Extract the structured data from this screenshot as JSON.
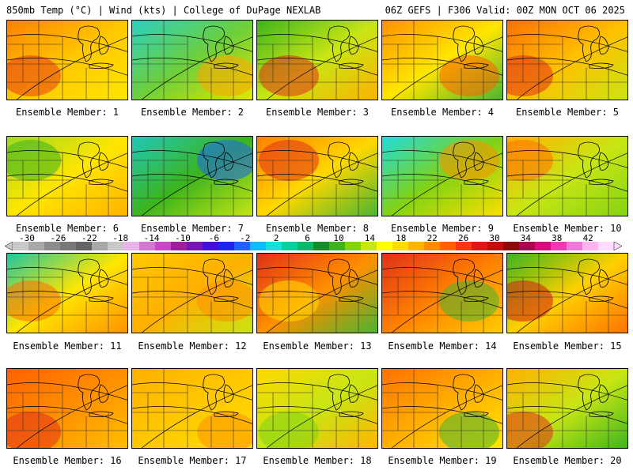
{
  "header": {
    "left": "850mb Temp (°C) | Wind (kts) | College of DuPage NEXLAB",
    "right": "06Z GEFS | F306 Valid: 00Z MON OCT 06 2025"
  },
  "colorbar": {
    "ticks": [
      "-30",
      "-26",
      "-22",
      "-18",
      "-14",
      "-10",
      "-6",
      "-2",
      "2",
      "6",
      "10",
      "14",
      "18",
      "22",
      "26",
      "30",
      "34",
      "38",
      "42"
    ],
    "colors": [
      "#c8c8c8",
      "#a8a8a8",
      "#8c8c8c",
      "#787878",
      "#646464",
      "#a8a8a8",
      "#c8c8c8",
      "#e6b4e6",
      "#d278d2",
      "#c846c8",
      "#a01ea0",
      "#7814b4",
      "#4614c8",
      "#1e28dc",
      "#1e64f0",
      "#1eb4ff",
      "#1edcdc",
      "#14c8a0",
      "#14b46e",
      "#148c28",
      "#3cb41e",
      "#82d214",
      "#c8e614",
      "#ffff00",
      "#ffdc00",
      "#ffb400",
      "#ff8c00",
      "#ff6400",
      "#f03c14",
      "#d21e14",
      "#b4140a",
      "#8c0a0a",
      "#a00a50",
      "#c8147d",
      "#e63cb4",
      "#f078dc",
      "#ffb4f0",
      "#ffdcff"
    ]
  },
  "panels": [
    {
      "label": "Ensemble Member: 1",
      "colors": [
        "#ff8000",
        "#ffc800",
        "#ffe600"
      ],
      "hot": "#e83c14"
    },
    {
      "label": "Ensemble Member: 2",
      "colors": [
        "#2ad0c0",
        "#6ecf3a",
        "#e6e800"
      ],
      "hot": "#ffa400"
    },
    {
      "label": "Ensemble Member: 3",
      "colors": [
        "#3cb41e",
        "#c8e614",
        "#ffb000"
      ],
      "hot": "#e03018"
    },
    {
      "label": "Ensemble Member: 4",
      "colors": [
        "#ff9000",
        "#ffe600",
        "#46b432"
      ],
      "hot": "#ff6000"
    },
    {
      "label": "Ensemble Member: 5",
      "colors": [
        "#ff7000",
        "#ffc000",
        "#c8e614"
      ],
      "hot": "#e03018"
    },
    {
      "label": "Ensemble Member: 6",
      "colors": [
        "#a0d820",
        "#ffe600",
        "#ffb000"
      ],
      "hot": "#3cb41e"
    },
    {
      "label": "Ensemble Member: 7",
      "colors": [
        "#20c8b8",
        "#3cb41e",
        "#c8e614"
      ],
      "hot": "#1e64f0"
    },
    {
      "label": "Ensemble Member: 8",
      "colors": [
        "#ff8000",
        "#ffd800",
        "#46b432"
      ],
      "hot": "#e03018"
    },
    {
      "label": "Ensemble Member: 9",
      "colors": [
        "#1edcdc",
        "#82d214",
        "#ffe000"
      ],
      "hot": "#ff9000"
    },
    {
      "label": "Ensemble Member: 10",
      "colors": [
        "#ffb000",
        "#c8e614",
        "#82d214"
      ],
      "hot": "#ff7000"
    },
    {
      "label": "Ensemble Member: 11",
      "colors": [
        "#1ec8a0",
        "#ffe600",
        "#ff9000"
      ],
      "hot": "#ff7000"
    },
    {
      "label": "Ensemble Member: 12",
      "colors": [
        "#ffc800",
        "#ffb000",
        "#c8e614"
      ],
      "hot": "#ff9000"
    },
    {
      "label": "Ensemble Member: 13",
      "colors": [
        "#e03018",
        "#ff9000",
        "#46b432"
      ],
      "hot": "#ffe000"
    },
    {
      "label": "Ensemble Member: 14",
      "colors": [
        "#e03018",
        "#ff8000",
        "#ffd000"
      ],
      "hot": "#46b432"
    },
    {
      "label": "Ensemble Member: 15",
      "colors": [
        "#3cb41e",
        "#ffd000",
        "#ff7000"
      ],
      "hot": "#d21e14"
    },
    {
      "label": "Ensemble Member: 16",
      "colors": [
        "#ff6000",
        "#ff9000",
        "#ffc000"
      ],
      "hot": "#e03018"
    },
    {
      "label": "Ensemble Member: 17",
      "colors": [
        "#ffb000",
        "#ffc800",
        "#ffe000"
      ],
      "hot": "#ff9000"
    },
    {
      "label": "Ensemble Member: 18",
      "colors": [
        "#ffd800",
        "#c8e614",
        "#ffb400"
      ],
      "hot": "#82d214"
    },
    {
      "label": "Ensemble Member: 19",
      "colors": [
        "#ff7000",
        "#ffb000",
        "#ffe600"
      ],
      "hot": "#46b432"
    },
    {
      "label": "Ensemble Member: 20",
      "colors": [
        "#ffb000",
        "#c8e614",
        "#3cb41e"
      ],
      "hot": "#e03018"
    }
  ]
}
